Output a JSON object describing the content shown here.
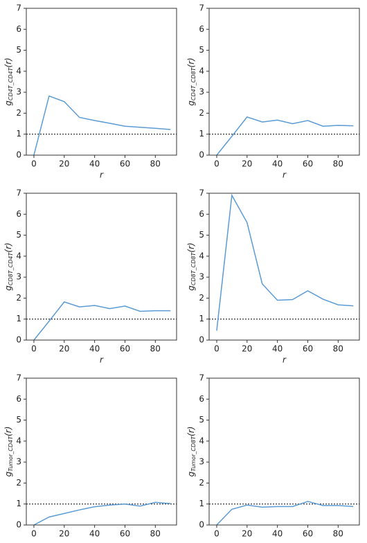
{
  "chart_data": [
    {
      "type": "line",
      "ylabel": "g",
      "ylabel_subscript": "CD4T_CD4T",
      "ylabel_suffix": "(r)",
      "xlabel": "r",
      "x": [
        0,
        10,
        20,
        30,
        40,
        50,
        60,
        70,
        80,
        90
      ],
      "values": [
        0,
        2.82,
        2.55,
        1.8,
        1.65,
        1.52,
        1.38,
        1.33,
        1.28,
        1.22
      ],
      "color": "#5b9bd5",
      "xlim": [
        -5,
        94
      ],
      "xticks": [
        0,
        20,
        40,
        60,
        80
      ],
      "ylim": [
        0,
        7
      ],
      "yticks": [
        0,
        1,
        2,
        3,
        4,
        5,
        6,
        7
      ],
      "hline": 1
    },
    {
      "type": "line",
      "ylabel": "g",
      "ylabel_subscript": "CD4T_CD8T",
      "ylabel_suffix": "(r)",
      "xlabel": "r",
      "x": [
        0,
        10,
        20,
        30,
        40,
        50,
        60,
        70,
        80,
        90
      ],
      "values": [
        0,
        0.9,
        1.82,
        1.58,
        1.67,
        1.5,
        1.65,
        1.38,
        1.42,
        1.4
      ],
      "color": "#5b9bd5",
      "xlim": [
        -5,
        94
      ],
      "xticks": [
        0,
        20,
        40,
        60,
        80
      ],
      "ylim": [
        0,
        7
      ],
      "yticks": [
        0,
        1,
        2,
        3,
        4,
        5,
        6,
        7
      ],
      "hline": 1
    },
    {
      "type": "line",
      "ylabel": "g",
      "ylabel_subscript": "CD8T_CD4T",
      "ylabel_suffix": "(r)",
      "xlabel": "r",
      "x": [
        0,
        10,
        20,
        30,
        40,
        50,
        60,
        70,
        80,
        90
      ],
      "values": [
        0,
        0.9,
        1.82,
        1.58,
        1.65,
        1.5,
        1.62,
        1.37,
        1.4,
        1.4
      ],
      "color": "#5b9bd5",
      "xlim": [
        -5,
        94
      ],
      "xticks": [
        0,
        20,
        40,
        60,
        80
      ],
      "ylim": [
        0,
        7
      ],
      "yticks": [
        0,
        1,
        2,
        3,
        4,
        5,
        6,
        7
      ],
      "hline": 1
    },
    {
      "type": "line",
      "ylabel": "g",
      "ylabel_subscript": "CD8T_CD8T",
      "ylabel_suffix": "(r)",
      "xlabel": "r",
      "x": [
        0,
        10,
        20,
        30,
        40,
        50,
        60,
        70,
        80,
        90
      ],
      "values": [
        0.45,
        6.9,
        5.6,
        2.68,
        1.9,
        1.93,
        2.35,
        1.95,
        1.68,
        1.63
      ],
      "color": "#5b9bd5",
      "xlim": [
        -5,
        94
      ],
      "xticks": [
        0,
        20,
        40,
        60,
        80
      ],
      "ylim": [
        0,
        7
      ],
      "yticks": [
        0,
        1,
        2,
        3,
        4,
        5,
        6,
        7
      ],
      "hline": 1
    },
    {
      "type": "line",
      "ylabel": "g",
      "ylabel_subscript": "Tumor_CD4T",
      "ylabel_suffix": "(r)",
      "x": [
        0,
        10,
        20,
        30,
        40,
        50,
        60,
        70,
        80,
        90
      ],
      "values": [
        0,
        0.38,
        0.55,
        0.72,
        0.87,
        0.95,
        1.0,
        0.9,
        1.08,
        1.02
      ],
      "color": "#5b9bd5",
      "xlim": [
        -5,
        94
      ],
      "xticks": [
        0,
        20,
        40,
        60,
        80
      ],
      "ylim": [
        0,
        7
      ],
      "yticks": [
        0,
        1,
        2,
        3,
        4,
        5,
        6,
        7
      ],
      "hline": 1
    },
    {
      "type": "line",
      "ylabel": "g",
      "ylabel_subscript": "Tumor_CD8T",
      "ylabel_suffix": "(r)",
      "x": [
        0,
        10,
        20,
        30,
        40,
        50,
        60,
        70,
        80,
        90
      ],
      "values": [
        0,
        0.75,
        0.95,
        0.85,
        0.88,
        0.88,
        1.12,
        0.93,
        0.93,
        0.88
      ],
      "color": "#5b9bd5",
      "xlim": [
        -5,
        94
      ],
      "xticks": [
        0,
        20,
        40,
        60,
        80
      ],
      "ylim": [
        0,
        7
      ],
      "yticks": [
        0,
        1,
        2,
        3,
        4,
        5,
        6,
        7
      ],
      "hline": 1
    }
  ]
}
